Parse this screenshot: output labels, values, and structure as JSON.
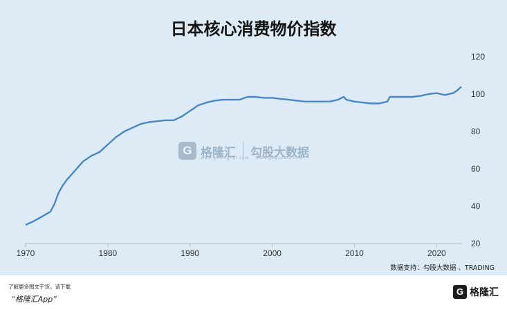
{
  "title": "日本核心消费物价指数",
  "source_text": "数据支持：勾股大数据 、TRADING",
  "watermark": {
    "logo_glyph": "G",
    "brand": "格隆汇",
    "brand_sub": "www.gelonghui.com",
    "brand2": "勾股大数据",
    "brand2_sub": "www.gogudata.com"
  },
  "footer": {
    "note": "了解更多图文干货，请下载",
    "app": "“格隆汇App”",
    "logo_glyph": "G",
    "brand": "格隆汇"
  },
  "colors": {
    "background": "#dcebf5",
    "line": "#4a86c5",
    "axis": "#b9c2c9"
  },
  "chart_data": {
    "type": "line",
    "title": "日本核心消费物价指数",
    "xlim": [
      1970,
      2023
    ],
    "ylim": [
      20,
      120
    ],
    "x_ticks": [
      1970,
      1980,
      1990,
      2000,
      2010,
      2020
    ],
    "y_ticks": [
      20,
      40,
      60,
      80,
      100,
      120
    ],
    "y_axis_position": "right",
    "grid": false,
    "series": [
      {
        "x": [
          1970,
          1971,
          1972,
          1973,
          1973.5,
          1974,
          1974.5,
          1975,
          1976,
          1977,
          1978,
          1979,
          1980,
          1981,
          1982,
          1983,
          1984,
          1985,
          1986,
          1987,
          1988,
          1989,
          1990,
          1991,
          1992,
          1993,
          1994,
          1995,
          1996,
          1997,
          1998,
          1999,
          2000,
          2001,
          2002,
          2003,
          2004,
          2005,
          2006,
          2007,
          2008,
          2008.7,
          2009,
          2010,
          2011,
          2012,
          2013,
          2014,
          2014.3,
          2015,
          2016,
          2017,
          2018,
          2019,
          2020,
          2021,
          2022,
          2022.5,
          2023
        ],
        "y": [
          30,
          32,
          34.5,
          37,
          41,
          47,
          51,
          54,
          59,
          64,
          67,
          69,
          73,
          77,
          80,
          82,
          84,
          85,
          85.5,
          86,
          86,
          88,
          91,
          94,
          95.5,
          96.5,
          97,
          97,
          97,
          98.5,
          98.5,
          98,
          98,
          97.5,
          97,
          96.5,
          96,
          96,
          96,
          96,
          97,
          98.5,
          97,
          96,
          95.5,
          95,
          95,
          96,
          98.5,
          98.5,
          98.5,
          98.5,
          99,
          100,
          100.5,
          99.5,
          100.5,
          102,
          104
        ]
      }
    ]
  }
}
